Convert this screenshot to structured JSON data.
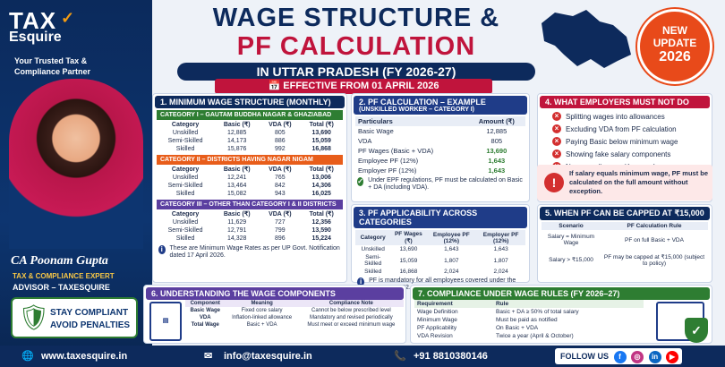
{
  "brand": {
    "logo_top": "TAX",
    "logo_bottom": "Esquire",
    "tagline_1": "Your Trusted Tax &",
    "tagline_2": "Compliance Partner"
  },
  "person": {
    "name": "CA Poonam Gupta",
    "role_1": "TAX & COMPLIANCE EXPERT",
    "role_2": "ADVISOR – TAXESQUIRE"
  },
  "stay": {
    "line1": "STAY COMPLIANT",
    "line2": "AVOID PENALTIES"
  },
  "header": {
    "title_1": "WAGE STRUCTURE &",
    "title_2": "PF CALCULATION",
    "subtitle": "IN UTTAR PRADESH (FY 2026-27)",
    "effective": "EFFECTIVE FROM 01 APRIL 2026"
  },
  "badge": {
    "l1": "NEW",
    "l2": "UPDATE",
    "l3": "2026"
  },
  "s1": {
    "title": "1. MINIMUM WAGE STRUCTURE (MONTHLY)",
    "cols": [
      "Category",
      "Basic (₹)",
      "VDA (₹)",
      "Total (₹)"
    ],
    "cat1": {
      "title": "CATEGORY I – GAUTAM BUDDHA NAGAR & GHAZIABAD",
      "rows": [
        [
          "Unskilled",
          "12,885",
          "805",
          "13,690"
        ],
        [
          "Semi-Skilled",
          "14,173",
          "886",
          "15,059"
        ],
        [
          "Skilled",
          "15,876",
          "992",
          "16,868"
        ]
      ]
    },
    "cat2": {
      "title": "CATEGORY II – DISTRICTS HAVING NAGAR NIGAM",
      "rows": [
        [
          "Unskilled",
          "12,241",
          "765",
          "13,006"
        ],
        [
          "Semi-Skilled",
          "13,464",
          "842",
          "14,306"
        ],
        [
          "Skilled",
          "15,082",
          "943",
          "16,025"
        ]
      ]
    },
    "cat3": {
      "title": "CATEGORY III – OTHER THAN CATEGORY I & II DISTRICTS",
      "rows": [
        [
          "Unskilled",
          "11,629",
          "727",
          "12,356"
        ],
        [
          "Semi-Skilled",
          "12,791",
          "799",
          "13,590"
        ],
        [
          "Skilled",
          "14,328",
          "896",
          "15,224"
        ]
      ]
    },
    "note": "These are Minimum Wage Rates as per UP Govt. Notification dated 17 April 2026."
  },
  "s2": {
    "title": "2. PF CALCULATION – EXAMPLE",
    "subtitle": "(UNSKILLED WORKER – CATEGORY I)",
    "cols": [
      "Particulars",
      "Amount (₹)"
    ],
    "rows": [
      [
        "Basic Wage",
        "12,885"
      ],
      [
        "VDA",
        "805"
      ],
      [
        "PF Wages (Basic + VDA)",
        "13,690"
      ],
      [
        "Employee PF (12%)",
        "1,643"
      ],
      [
        "Employer PF (12%)",
        "1,643"
      ]
    ],
    "note": "Under EPF regulations, PF must be calculated on Basic + DA (including VDA)."
  },
  "s3": {
    "title": "3. PF APPLICABILITY ACROSS CATEGORIES",
    "cols": [
      "Category",
      "PF Wages (₹)",
      "Employee PF (12%)",
      "Employer PF (12%)"
    ],
    "rows": [
      [
        "Unskilled",
        "13,690",
        "1,643",
        "1,643"
      ],
      [
        "Semi-Skilled",
        "15,059",
        "1,807",
        "1,807"
      ],
      [
        "Skilled",
        "16,868",
        "2,024",
        "2,024"
      ]
    ],
    "note": "PF is mandatory for all employees covered under the EPF Act, 1952."
  },
  "s4": {
    "title": "4. WHAT EMPLOYERS MUST NOT DO",
    "items": [
      "Splitting wages into allowances",
      "Excluding VDA from PF calculation",
      "Paying Basic below minimum wage",
      "Showing fake salary components",
      "Non-compliance with wage laws"
    ],
    "warn": "If salary equals minimum wage, PF must be calculated on the full amount without exception."
  },
  "s5": {
    "title": "5. WHEN PF CAN BE CAPPED AT ₹15,000",
    "cols": [
      "Scenario",
      "PF Calculation Rule"
    ],
    "rows": [
      [
        "Salary = Minimum Wage",
        "PF on full Basic + VDA"
      ],
      [
        "Salary > ₹15,000",
        "PF may be capped at ₹15,000 (subject to policy)"
      ]
    ]
  },
  "s6": {
    "title": "6. UNDERSTANDING THE WAGE COMPONENTS",
    "cols": [
      "Component",
      "Meaning",
      "Compliance Note"
    ],
    "rows": [
      [
        "Basic Wage",
        "Fixed core salary",
        "Cannot be below prescribed level"
      ],
      [
        "VDA",
        "Inflation-linked allowance",
        "Mandatory and revised periodically"
      ],
      [
        "Total Wage",
        "Basic + VDA",
        "Must meet or exceed minimum wage"
      ]
    ]
  },
  "s7": {
    "title": "7. COMPLIANCE UNDER WAGE RULES (FY 2026–27)",
    "cols": [
      "Requirement",
      "Rule"
    ],
    "rows": [
      [
        "Wage Definition",
        "Basic + DA ≥ 50% of total salary"
      ],
      [
        "Minimum Wage",
        "Must be paid as notified"
      ],
      [
        "PF Applicability",
        "On Basic + VDA"
      ],
      [
        "VDA Revision",
        "Twice a year (April & October)"
      ]
    ]
  },
  "footer": {
    "web": "www.taxesquire.in",
    "email": "info@taxesquire.in",
    "phone": "+91 8810380146",
    "follow": "FOLLOW US"
  },
  "colors": {
    "navy": "#0d2a5c",
    "red": "#c0143c",
    "green": "#2e7d32",
    "orange": "#e84a1a",
    "purple": "#5b3fa0"
  }
}
